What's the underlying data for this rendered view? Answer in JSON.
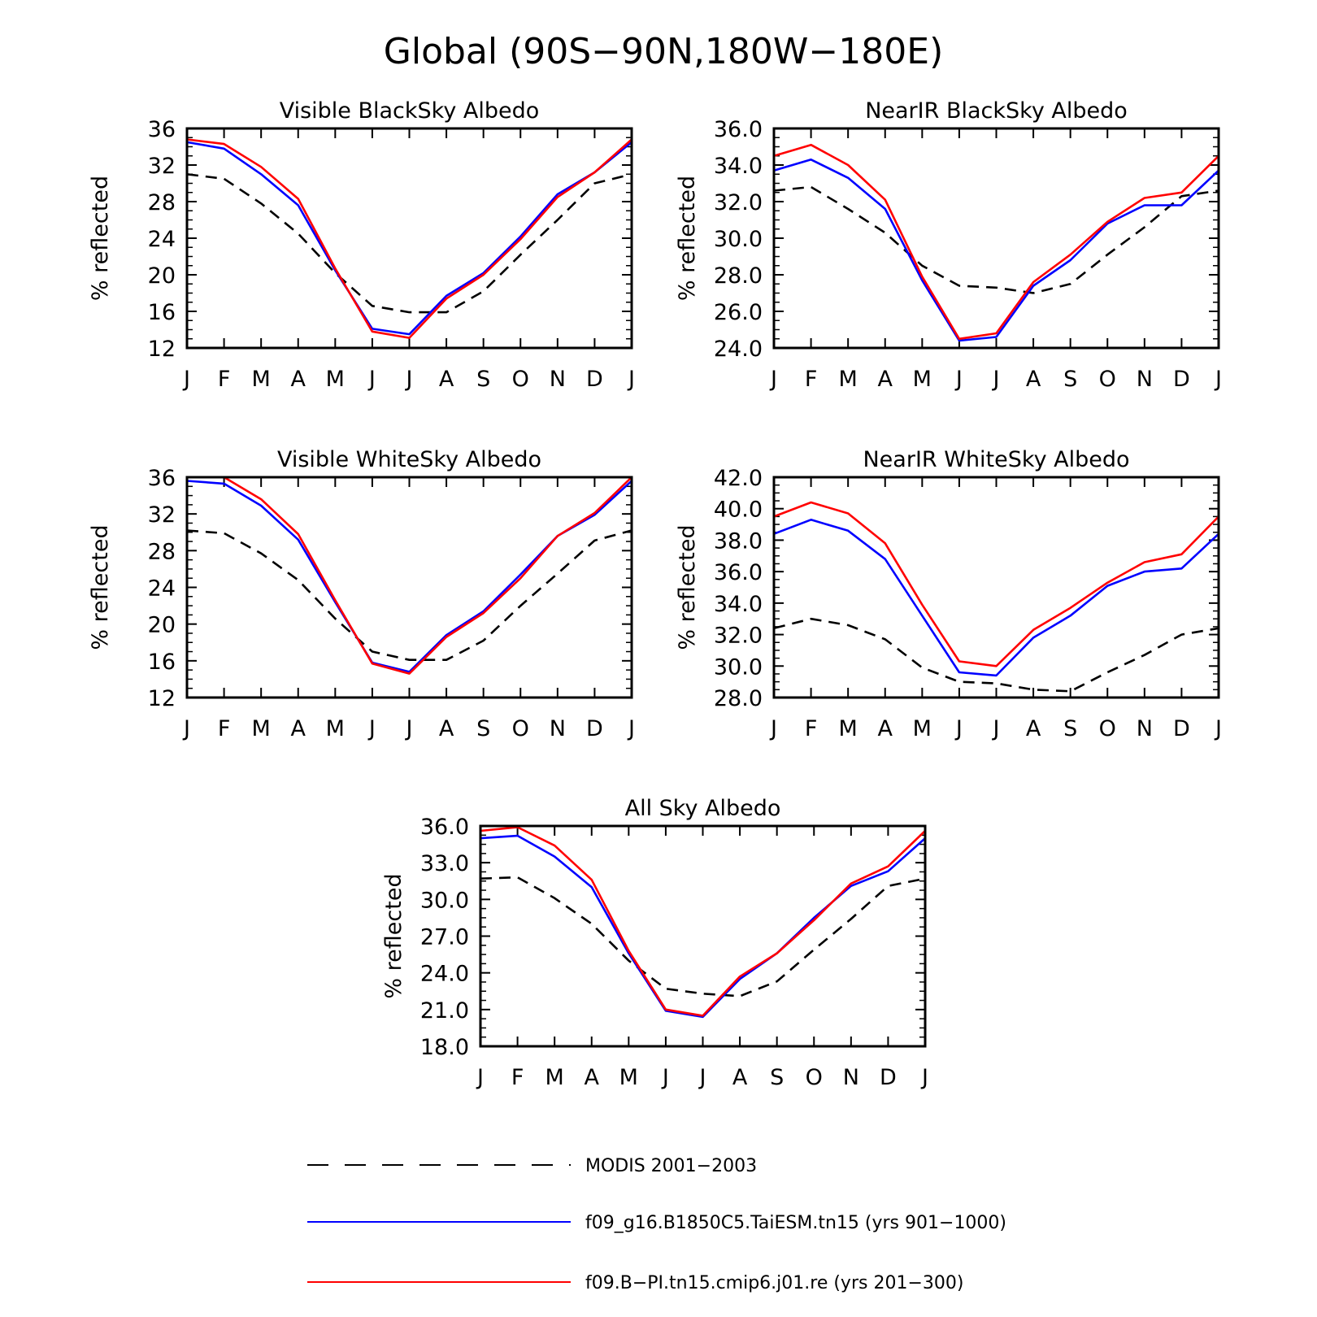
{
  "figure": {
    "title": "Global (90S−90N,180W−180E)",
    "colors": {
      "modis": "#000000",
      "blue": "#0000ff",
      "red": "#ff0000"
    }
  },
  "legend": {
    "entries": [
      {
        "label": "MODIS 2001−2003",
        "color": "#000000",
        "style": "dashed"
      },
      {
        "label": "f09_g16.B1850C5.TaiESM.tn15 (yrs 901−1000)",
        "color": "#0000ff",
        "style": "solid"
      },
      {
        "label": "f09.B−PI.tn15.cmip6.j01.re (yrs 201−300)",
        "color": "#ff0000",
        "style": "solid"
      }
    ]
  },
  "chart_data": [
    {
      "type": "line",
      "title": "Visible BlackSky Albedo",
      "ylabel": "% reflected",
      "categories": [
        "J",
        "F",
        "M",
        "A",
        "M",
        "J",
        "J",
        "A",
        "S",
        "O",
        "N",
        "D",
        "J"
      ],
      "ylim": [
        12,
        36
      ],
      "yticks": [
        "12",
        "16",
        "20",
        "24",
        "28",
        "32",
        "36"
      ],
      "series": [
        {
          "name": "MODIS 2001−2003",
          "values": [
            31.0,
            30.5,
            27.8,
            24.5,
            20.2,
            16.6,
            15.9,
            15.9,
            18.2,
            22.2,
            26.0,
            30.0,
            31.0
          ]
        },
        {
          "name": "f09_g16.B1850C5.TaiESM.tn15 (yrs 901−1000)",
          "values": [
            34.5,
            33.8,
            31.0,
            27.6,
            20.5,
            14.1,
            13.5,
            17.7,
            20.2,
            24.2,
            28.8,
            31.2,
            34.5
          ]
        },
        {
          "name": "f09.B−PI.tn15.cmip6.j01.re (yrs 201−300)",
          "values": [
            34.8,
            34.3,
            31.8,
            28.3,
            20.7,
            13.8,
            13.1,
            17.4,
            20.0,
            23.9,
            28.5,
            31.2,
            34.8
          ]
        }
      ]
    },
    {
      "type": "line",
      "title": "NearIR BlackSky Albedo",
      "ylabel": "% reflected",
      "categories": [
        "J",
        "F",
        "M",
        "A",
        "M",
        "J",
        "J",
        "A",
        "S",
        "O",
        "N",
        "D",
        "J"
      ],
      "ylim": [
        24,
        36
      ],
      "yticks": [
        "24.0",
        "26.0",
        "28.0",
        "30.0",
        "32.0",
        "34.0",
        "36.0"
      ],
      "series": [
        {
          "name": "MODIS 2001−2003",
          "values": [
            32.6,
            32.8,
            31.6,
            30.3,
            28.5,
            27.4,
            27.3,
            27.0,
            27.5,
            29.1,
            30.6,
            32.3,
            32.6
          ]
        },
        {
          "name": "f09_g16.B1850C5.TaiESM.tn15 (yrs 901−1000)",
          "values": [
            33.7,
            34.3,
            33.3,
            31.6,
            27.7,
            24.4,
            24.6,
            27.4,
            28.8,
            30.8,
            31.8,
            31.8,
            33.7
          ]
        },
        {
          "name": "f09.B−PI.tn15.cmip6.j01.re (yrs 201−300)",
          "values": [
            34.5,
            35.1,
            34.0,
            32.1,
            27.9,
            24.5,
            24.8,
            27.6,
            29.1,
            30.9,
            32.2,
            32.5,
            34.5
          ]
        }
      ]
    },
    {
      "type": "line",
      "title": "Visible WhiteSky Albedo",
      "ylabel": "% reflected",
      "categories": [
        "J",
        "F",
        "M",
        "A",
        "M",
        "J",
        "J",
        "A",
        "S",
        "O",
        "N",
        "D",
        "J"
      ],
      "ylim": [
        12,
        36
      ],
      "yticks": [
        "12",
        "16",
        "20",
        "24",
        "28",
        "32",
        "36"
      ],
      "series": [
        {
          "name": "MODIS 2001−2003",
          "values": [
            30.2,
            29.9,
            27.7,
            24.8,
            20.6,
            17.0,
            16.1,
            16.1,
            18.2,
            22.0,
            25.5,
            29.1,
            30.2
          ]
        },
        {
          "name": "f09_g16.B1850C5.TaiESM.tn15 (yrs 901−1000)",
          "values": [
            35.6,
            35.3,
            32.9,
            29.2,
            22.4,
            15.8,
            14.8,
            18.8,
            21.4,
            25.4,
            29.6,
            31.9,
            35.6
          ]
        },
        {
          "name": "f09.B−PI.tn15.cmip6.j01.re (yrs 201−300)",
          "values": [
            36.0,
            36.0,
            33.6,
            29.8,
            22.6,
            15.7,
            14.6,
            18.6,
            21.2,
            25.0,
            29.6,
            32.1,
            36.0
          ]
        }
      ]
    },
    {
      "type": "line",
      "title": "NearIR WhiteSky Albedo",
      "ylabel": "% reflected",
      "categories": [
        "J",
        "F",
        "M",
        "A",
        "M",
        "J",
        "J",
        "A",
        "S",
        "O",
        "N",
        "D",
        "J"
      ],
      "ylim": [
        28,
        42
      ],
      "yticks": [
        "28.0",
        "30.0",
        "32.0",
        "34.0",
        "36.0",
        "38.0",
        "40.0",
        "42.0"
      ],
      "series": [
        {
          "name": "MODIS 2001−2003",
          "values": [
            32.4,
            33.0,
            32.6,
            31.7,
            29.9,
            29.0,
            28.9,
            28.5,
            28.4,
            29.6,
            30.7,
            32.0,
            32.4
          ]
        },
        {
          "name": "f09_g16.B1850C5.TaiESM.tn15 (yrs 901−1000)",
          "values": [
            38.4,
            39.3,
            38.6,
            36.8,
            33.2,
            29.6,
            29.4,
            31.8,
            33.2,
            35.1,
            36.0,
            36.2,
            38.4
          ]
        },
        {
          "name": "f09.B−PI.tn15.cmip6.j01.re (yrs 201−300)",
          "values": [
            39.5,
            40.4,
            39.7,
            37.8,
            33.9,
            30.3,
            30.0,
            32.3,
            33.7,
            35.3,
            36.6,
            37.1,
            39.5
          ]
        }
      ]
    },
    {
      "type": "line",
      "title": "All Sky Albedo",
      "ylabel": "% reflected",
      "categories": [
        "J",
        "F",
        "M",
        "A",
        "M",
        "J",
        "J",
        "A",
        "S",
        "O",
        "N",
        "D",
        "J"
      ],
      "ylim": [
        18,
        36
      ],
      "yticks": [
        "18.0",
        "21.0",
        "24.0",
        "27.0",
        "30.0",
        "33.0",
        "36.0"
      ],
      "series": [
        {
          "name": "MODIS 2001−2003",
          "values": [
            31.7,
            31.8,
            30.1,
            28.0,
            25.0,
            22.7,
            22.3,
            22.1,
            23.3,
            25.9,
            28.4,
            31.1,
            31.7
          ]
        },
        {
          "name": "f09_g16.B1850C5.TaiESM.tn15 (yrs 901−1000)",
          "values": [
            35.0,
            35.2,
            33.5,
            31.0,
            25.6,
            20.9,
            20.4,
            23.5,
            25.6,
            28.5,
            31.1,
            32.3,
            35.0
          ]
        },
        {
          "name": "f09.B−PI.tn15.cmip6.j01.re (yrs 201−300)",
          "values": [
            35.6,
            35.9,
            34.4,
            31.6,
            25.8,
            21.0,
            20.5,
            23.7,
            25.6,
            28.3,
            31.3,
            32.7,
            35.6
          ]
        }
      ]
    }
  ]
}
